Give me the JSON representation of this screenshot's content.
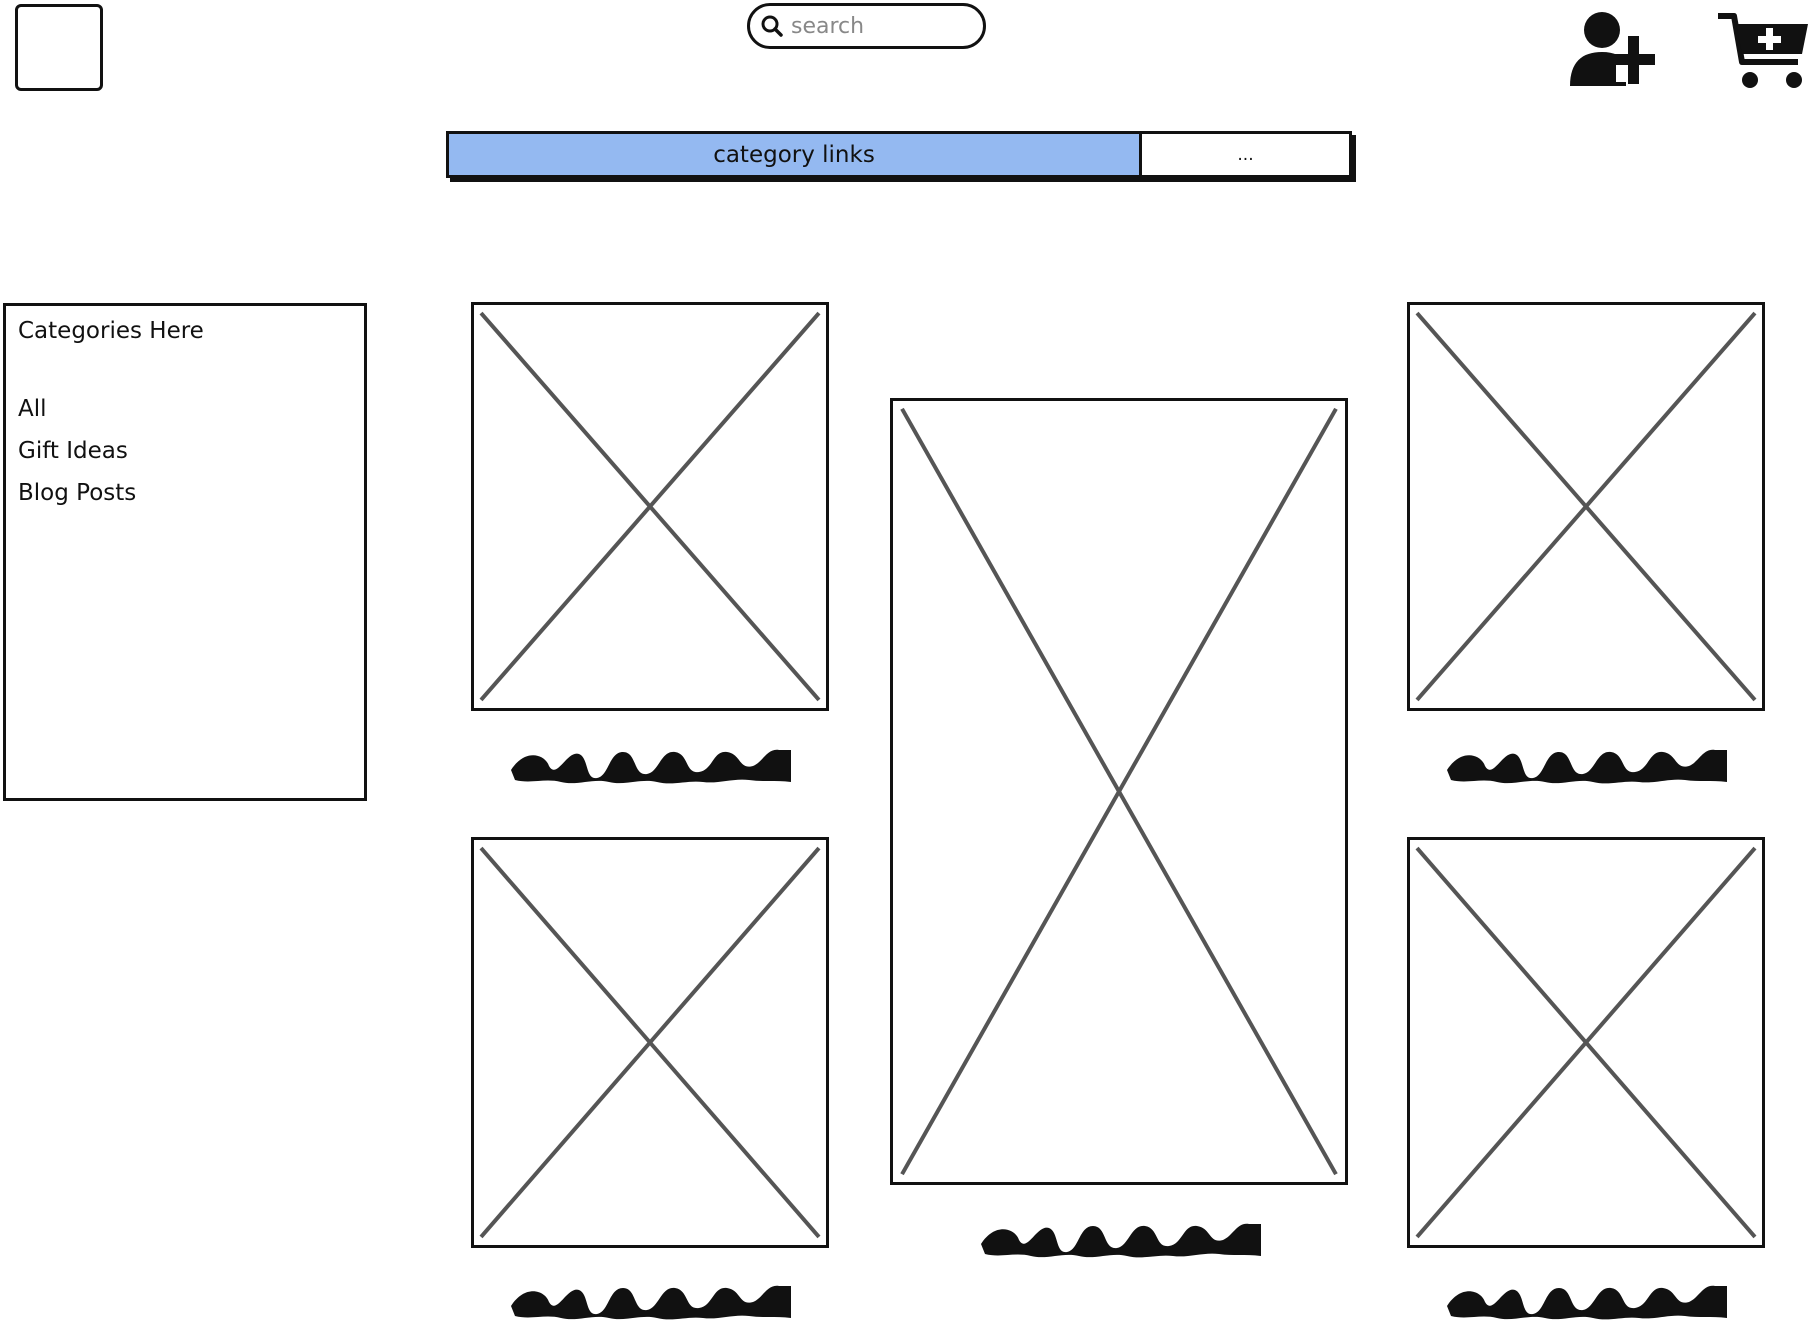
{
  "header": {
    "logo_icon": "logo-placeholder-box",
    "search_placeholder": "search",
    "search_icon": "search-icon",
    "add_user_icon": "add-user-icon",
    "cart_icon": "add-to-cart-icon"
  },
  "category_bar": {
    "main_label": "category links",
    "more_label": "...",
    "active_color": "#94b9f1"
  },
  "sidebar": {
    "title": "Categories Here",
    "items": [
      {
        "label": "All"
      },
      {
        "label": "Gift Ideas"
      },
      {
        "label": "Blog Posts"
      }
    ]
  },
  "products": {
    "items": [
      {
        "image": "image-placeholder",
        "caption": "scribbled-text"
      },
      {
        "image": "image-placeholder",
        "caption": "scribbled-text"
      },
      {
        "image": "image-placeholder",
        "caption": "scribbled-text"
      },
      {
        "image": "image-placeholder",
        "caption": "scribbled-text"
      },
      {
        "image": "image-placeholder",
        "caption": "scribbled-text"
      }
    ]
  }
}
